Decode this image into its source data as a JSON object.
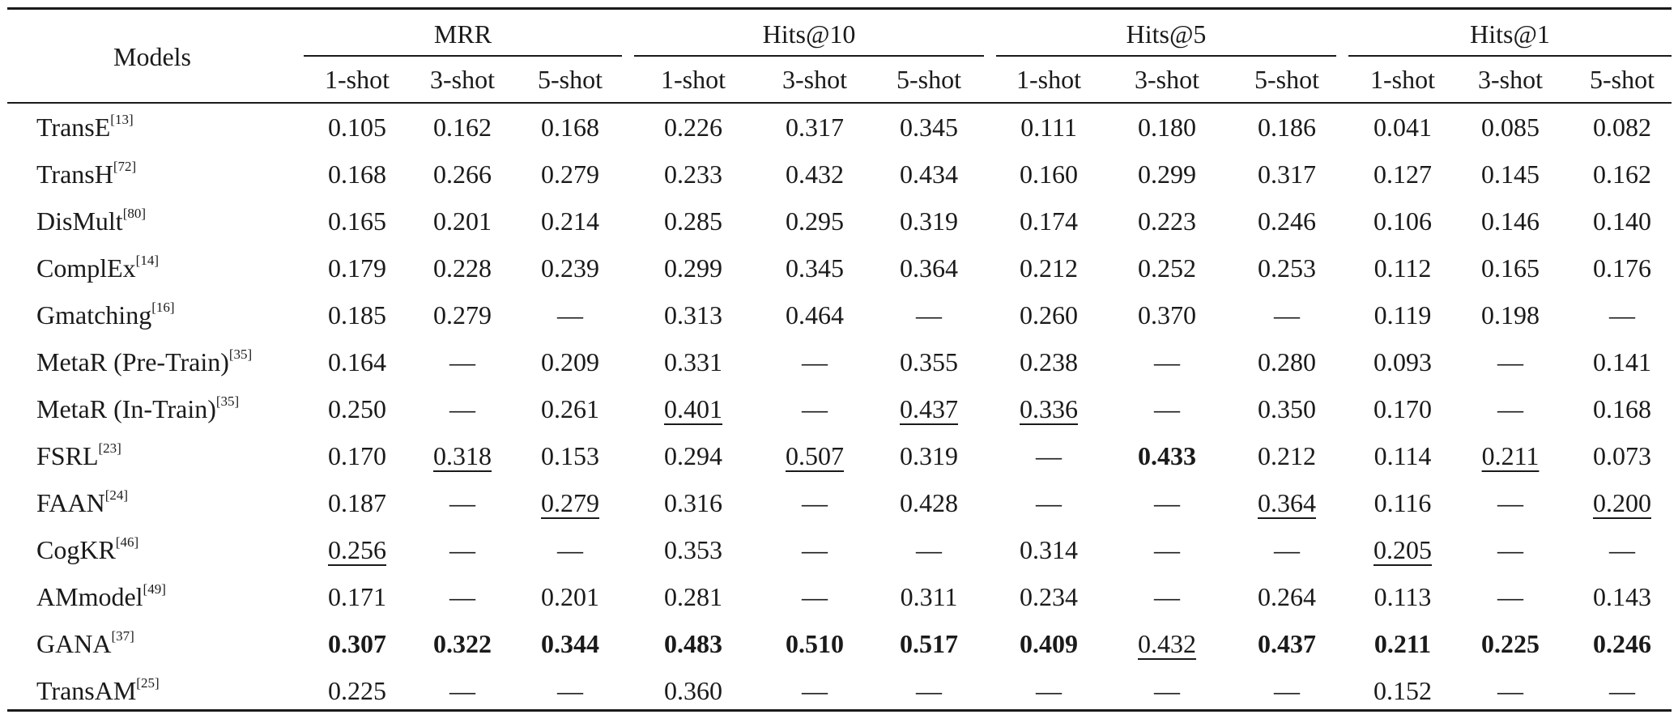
{
  "table": {
    "models_header": "Models",
    "groups": [
      "MRR",
      "Hits@10",
      "Hits@5",
      "Hits@1"
    ],
    "subheaders": [
      "1-shot",
      "3-shot",
      "5-shot",
      "1-shot",
      "3-shot",
      "5-shot",
      "1-shot",
      "3-shot",
      "5-shot",
      "1-shot",
      "3-shot",
      "5-shot"
    ],
    "rows": [
      {
        "model": "TransE",
        "ref": "[13]",
        "cells": [
          {
            "v": "0.105"
          },
          {
            "v": "0.162"
          },
          {
            "v": "0.168"
          },
          {
            "v": "0.226"
          },
          {
            "v": "0.317"
          },
          {
            "v": "0.345"
          },
          {
            "v": "0.111"
          },
          {
            "v": "0.180"
          },
          {
            "v": "0.186"
          },
          {
            "v": "0.041"
          },
          {
            "v": "0.085"
          },
          {
            "v": "0.082"
          }
        ]
      },
      {
        "model": "TransH",
        "ref": "[72]",
        "cells": [
          {
            "v": "0.168"
          },
          {
            "v": "0.266"
          },
          {
            "v": "0.279"
          },
          {
            "v": "0.233"
          },
          {
            "v": "0.432"
          },
          {
            "v": "0.434"
          },
          {
            "v": "0.160"
          },
          {
            "v": "0.299"
          },
          {
            "v": "0.317"
          },
          {
            "v": "0.127"
          },
          {
            "v": "0.145"
          },
          {
            "v": "0.162"
          }
        ]
      },
      {
        "model": "DisMult",
        "ref": "[80]",
        "cells": [
          {
            "v": "0.165"
          },
          {
            "v": "0.201"
          },
          {
            "v": "0.214"
          },
          {
            "v": "0.285"
          },
          {
            "v": "0.295"
          },
          {
            "v": "0.319"
          },
          {
            "v": "0.174"
          },
          {
            "v": "0.223"
          },
          {
            "v": "0.246"
          },
          {
            "v": "0.106"
          },
          {
            "v": "0.146"
          },
          {
            "v": "0.140"
          }
        ]
      },
      {
        "model": "ComplEx",
        "ref": "[14]",
        "cells": [
          {
            "v": "0.179"
          },
          {
            "v": "0.228"
          },
          {
            "v": "0.239"
          },
          {
            "v": "0.299"
          },
          {
            "v": "0.345"
          },
          {
            "v": "0.364"
          },
          {
            "v": "0.212"
          },
          {
            "v": "0.252"
          },
          {
            "v": "0.253"
          },
          {
            "v": "0.112"
          },
          {
            "v": "0.165"
          },
          {
            "v": "0.176"
          }
        ]
      },
      {
        "model": "Gmatching",
        "ref": "[16]",
        "cells": [
          {
            "v": "0.185"
          },
          {
            "v": "0.279"
          },
          {
            "v": "—"
          },
          {
            "v": "0.313"
          },
          {
            "v": "0.464"
          },
          {
            "v": "—"
          },
          {
            "v": "0.260"
          },
          {
            "v": "0.370"
          },
          {
            "v": "—"
          },
          {
            "v": "0.119"
          },
          {
            "v": "0.198"
          },
          {
            "v": "—"
          }
        ]
      },
      {
        "model": "MetaR (Pre-Train)",
        "ref": "[35]",
        "cells": [
          {
            "v": "0.164"
          },
          {
            "v": "—"
          },
          {
            "v": "0.209"
          },
          {
            "v": "0.331"
          },
          {
            "v": "—"
          },
          {
            "v": "0.355"
          },
          {
            "v": "0.238"
          },
          {
            "v": "—"
          },
          {
            "v": "0.280"
          },
          {
            "v": "0.093"
          },
          {
            "v": "—"
          },
          {
            "v": "0.141"
          }
        ]
      },
      {
        "model": "MetaR (In-Train)",
        "ref": "[35]",
        "cells": [
          {
            "v": "0.250"
          },
          {
            "v": "—"
          },
          {
            "v": "0.261"
          },
          {
            "v": "0.401",
            "s": "u"
          },
          {
            "v": "—"
          },
          {
            "v": "0.437",
            "s": "u"
          },
          {
            "v": "0.336",
            "s": "u"
          },
          {
            "v": "—"
          },
          {
            "v": "0.350"
          },
          {
            "v": "0.170"
          },
          {
            "v": "—"
          },
          {
            "v": "0.168"
          }
        ]
      },
      {
        "model": "FSRL",
        "ref": "[23]",
        "cells": [
          {
            "v": "0.170"
          },
          {
            "v": "0.318",
            "s": "u"
          },
          {
            "v": "0.153"
          },
          {
            "v": "0.294"
          },
          {
            "v": "0.507",
            "s": "u"
          },
          {
            "v": "0.319"
          },
          {
            "v": "—"
          },
          {
            "v": "0.433",
            "s": "b"
          },
          {
            "v": "0.212"
          },
          {
            "v": "0.114"
          },
          {
            "v": "0.211",
            "s": "u"
          },
          {
            "v": "0.073"
          }
        ]
      },
      {
        "model": "FAAN",
        "ref": "[24]",
        "cells": [
          {
            "v": "0.187"
          },
          {
            "v": "—"
          },
          {
            "v": "0.279",
            "s": "u"
          },
          {
            "v": "0.316"
          },
          {
            "v": "—"
          },
          {
            "v": "0.428"
          },
          {
            "v": "—"
          },
          {
            "v": "—"
          },
          {
            "v": "0.364",
            "s": "u"
          },
          {
            "v": "0.116"
          },
          {
            "v": "—"
          },
          {
            "v": "0.200",
            "s": "u"
          }
        ]
      },
      {
        "model": "CogKR",
        "ref": "[46]",
        "cells": [
          {
            "v": "0.256",
            "s": "u"
          },
          {
            "v": "—"
          },
          {
            "v": "—"
          },
          {
            "v": "0.353"
          },
          {
            "v": "—"
          },
          {
            "v": "—"
          },
          {
            "v": "0.314"
          },
          {
            "v": "—"
          },
          {
            "v": "—"
          },
          {
            "v": "0.205",
            "s": "u"
          },
          {
            "v": "—"
          },
          {
            "v": "—"
          }
        ]
      },
      {
        "model": "AMmodel",
        "ref": "[49]",
        "cells": [
          {
            "v": "0.171"
          },
          {
            "v": "—"
          },
          {
            "v": "0.201"
          },
          {
            "v": "0.281"
          },
          {
            "v": "—"
          },
          {
            "v": "0.311"
          },
          {
            "v": "0.234"
          },
          {
            "v": "—"
          },
          {
            "v": "0.264"
          },
          {
            "v": "0.113"
          },
          {
            "v": "—"
          },
          {
            "v": "0.143"
          }
        ]
      },
      {
        "model": "GANA",
        "ref": "[37]",
        "cells": [
          {
            "v": "0.307",
            "s": "b"
          },
          {
            "v": "0.322",
            "s": "b"
          },
          {
            "v": "0.344",
            "s": "b"
          },
          {
            "v": "0.483",
            "s": "b"
          },
          {
            "v": "0.510",
            "s": "b"
          },
          {
            "v": "0.517",
            "s": "b"
          },
          {
            "v": "0.409",
            "s": "b"
          },
          {
            "v": "0.432",
            "s": "u"
          },
          {
            "v": "0.437",
            "s": "b"
          },
          {
            "v": "0.211",
            "s": "b"
          },
          {
            "v": "0.225",
            "s": "b"
          },
          {
            "v": "0.246",
            "s": "b"
          }
        ]
      },
      {
        "model": "TransAM",
        "ref": "[25]",
        "cells": [
          {
            "v": "0.225"
          },
          {
            "v": "—"
          },
          {
            "v": "—"
          },
          {
            "v": "0.360"
          },
          {
            "v": "—"
          },
          {
            "v": "—"
          },
          {
            "v": "—"
          },
          {
            "v": "—"
          },
          {
            "v": "—"
          },
          {
            "v": "0.152"
          },
          {
            "v": "—"
          },
          {
            "v": "—"
          }
        ]
      }
    ]
  }
}
